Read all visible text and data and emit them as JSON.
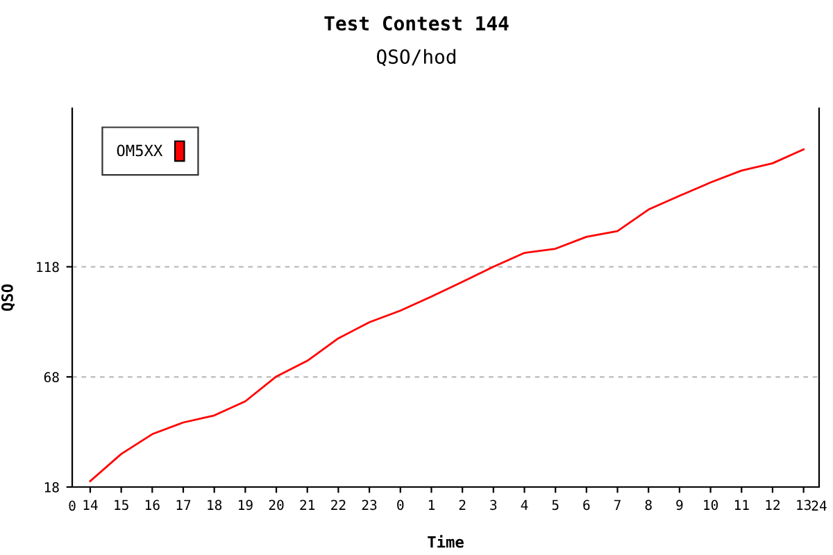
{
  "chart_data": {
    "type": "line",
    "title": "Test Contest 144",
    "subtitle": "QSO/hod",
    "xlabel": "Time",
    "ylabel": "QSO",
    "categories": [
      "14",
      "15",
      "16",
      "17",
      "18",
      "19",
      "20",
      "21",
      "22",
      "23",
      "0",
      "1",
      "2",
      "3",
      "4",
      "5",
      "6",
      "7",
      "8",
      "9",
      "10",
      "11",
      "12",
      "13"
    ],
    "series": [
      {
        "name": "OM5XX",
        "color": "#ff0000",
        "values": [
          20.7,
          33,
          42,
          47.3,
          50.5,
          56.9,
          68.2,
          75.3,
          85.5,
          92.8,
          98.1,
          104.5,
          111.2,
          118,
          124.3,
          126.2,
          131.6,
          134.2,
          144,
          150.2,
          156.3,
          161.7,
          165,
          171.3
        ]
      }
    ],
    "ylim": [
      18,
      190
    ],
    "yticks": [
      18,
      68,
      118
    ],
    "annotations": [
      "0",
      "24"
    ],
    "grid": "y",
    "legend": "top left",
    "marker": "none",
    "line_style": "solid"
  }
}
